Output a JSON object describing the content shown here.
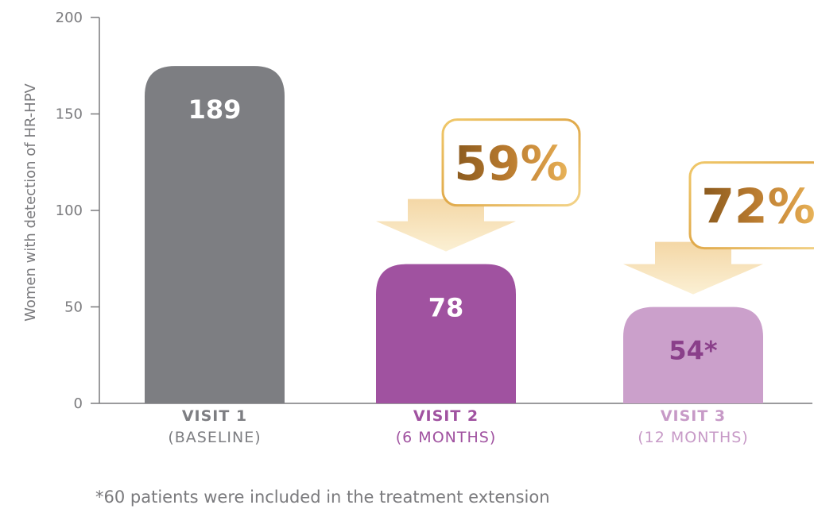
{
  "chart_data": {
    "type": "bar",
    "ylabel": "Women with detection of HR-HPV",
    "ylim": [
      0,
      200
    ],
    "yticks": [
      0,
      50,
      100,
      150,
      200
    ],
    "bars": [
      {
        "title": "VISIT 1",
        "subtitle": "(BASELINE)",
        "value": 189,
        "value_label": "189",
        "color": "#7d7e82",
        "label_color": "#ffffff",
        "cat_color": "#7d7e82"
      },
      {
        "title": "VISIT 2",
        "subtitle": "(6 MONTHS)",
        "value": 78,
        "value_label": "78",
        "color": "#a052a0",
        "label_color": "#ffffff",
        "cat_color": "#a052a0"
      },
      {
        "title": "VISIT 3",
        "subtitle": "(12 MONTHS)",
        "value": 54,
        "value_label": "54*",
        "color": "#cba0cb",
        "label_color": "#8a3f8a",
        "cat_color": "#c79ac7"
      }
    ],
    "reductions": [
      {
        "label": "59%",
        "bar_index": 1
      },
      {
        "label": "72%",
        "bar_index": 2
      }
    ],
    "colors": {
      "axis": "#7a7a7d",
      "gold_light": "#f6e3b4",
      "gold_dark": "#9a6520",
      "gold_border": "#e7b84a"
    }
  },
  "footnote": "*60 patients were included in the treatment extension"
}
